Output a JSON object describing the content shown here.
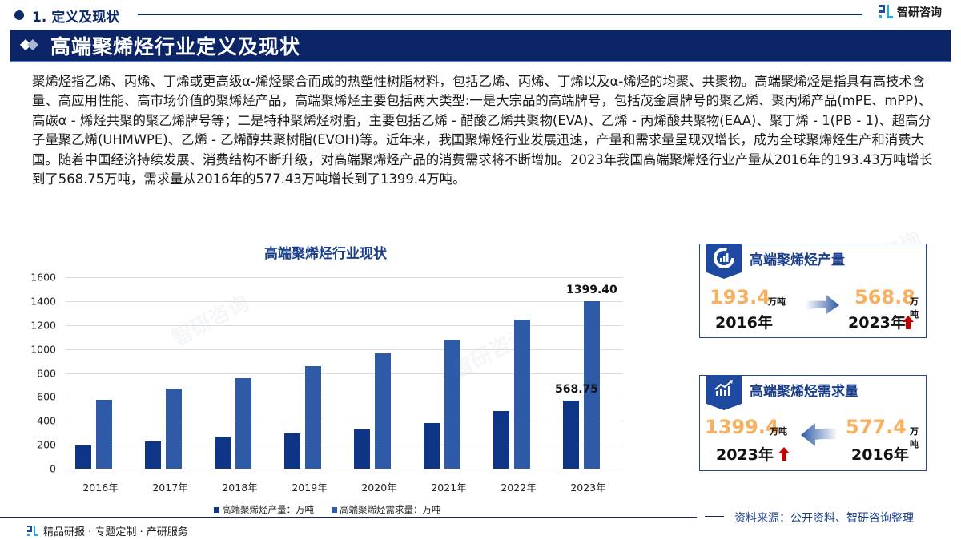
{
  "header": {
    "section_title": "1. 定义及现状",
    "logo_name": "智研咨询",
    "banner_title": "高端聚烯烃行业定义及现状"
  },
  "body": {
    "paragraph": "聚烯烃指乙烯、丙烯、丁烯或更高级α-烯烃聚合而成的热塑性树脂材料，包括乙烯、丙烯、丁烯以及α-烯烃的均聚、共聚物。高端聚烯烃是指具有高技术含量、高应用性能、高市场价值的聚烯烃产品，高端聚烯烃主要包括两大类型:一是大宗品的高端牌号，包括茂金属牌号的聚乙烯、聚丙烯产品(mPE、mPP)、高碳α - 烯烃共聚的聚乙烯牌号等；二是特种聚烯烃树脂，主要包括乙烯 - 醋酸乙烯共聚物(EVA)、乙烯 - 丙烯酸共聚物(EAA)、聚丁烯 - 1(PB - 1)、超高分子量聚乙烯(UHMWPE)、乙烯 - 乙烯醇共聚树脂(EVOH)等。近年来，我国聚烯烃行业发展迅速，产量和需求量呈现双增长，成为全球聚烯烃生产和消费大国。随着中国经济持续发展、消费结构不断升级，对高端聚烯烃产品的消费需求将不断增加。2023年我国高端聚烯烃行业产量从2016年的193.43万吨增长到了568.75万吨，需求量从2016年的577.43万吨增长到了1399.4万吨。"
  },
  "chart_data": {
    "type": "bar",
    "title": "高端聚烯烃行业现状",
    "categories": [
      "2016年",
      "2017年",
      "2018年",
      "2019年",
      "2020年",
      "2021年",
      "2022年",
      "2023年"
    ],
    "series": [
      {
        "name": "高端聚烯烃产量：万吨",
        "color": "#0e3585",
        "values": [
          193.43,
          228,
          266,
          297,
          328,
          384,
          484,
          568.75
        ]
      },
      {
        "name": "高端聚烯烃需求量：万吨",
        "color": "#2f5aa8",
        "values": [
          577.43,
          667,
          754,
          855,
          964,
          1076,
          1246,
          1399.4
        ]
      }
    ],
    "data_labels": [
      {
        "series": 0,
        "category": "2023年",
        "text": "568.75"
      },
      {
        "series": 1,
        "category": "2023年",
        "text": "1399.40"
      }
    ],
    "xlabel": "",
    "ylabel": "",
    "ylim": [
      0,
      1600
    ],
    "yticks": [
      0,
      200,
      400,
      600,
      800,
      1000,
      1200,
      1400,
      1600
    ],
    "grid": true,
    "legend_position": "bottom"
  },
  "cards": {
    "production": {
      "title": "高端聚烯烃产量",
      "icon": "pie-bar-chart-icon",
      "from_value": "193.4",
      "from_unit": "万吨",
      "from_year": "2016年",
      "to_value": "568.8",
      "to_unit": "万吨",
      "to_year": "2023年"
    },
    "demand": {
      "title": "高端聚烯烃需求量",
      "icon": "trend-up-chart-icon",
      "to_value": "1399.4",
      "to_unit": "万吨",
      "to_year": "2023年",
      "from_value": "577.4",
      "from_unit": "万吨",
      "from_year": "2016年"
    }
  },
  "footer": {
    "source": "资料来源：公开资料、智研咨询整理",
    "slogan": "精品研报 · 专题定制 · 产研服务"
  },
  "colors": {
    "navy": "#0c2566",
    "production_bar": "#0e3585",
    "demand_bar": "#2f5aa8",
    "highlight_number": "#f7b060",
    "up_arrow": "#c00000"
  }
}
